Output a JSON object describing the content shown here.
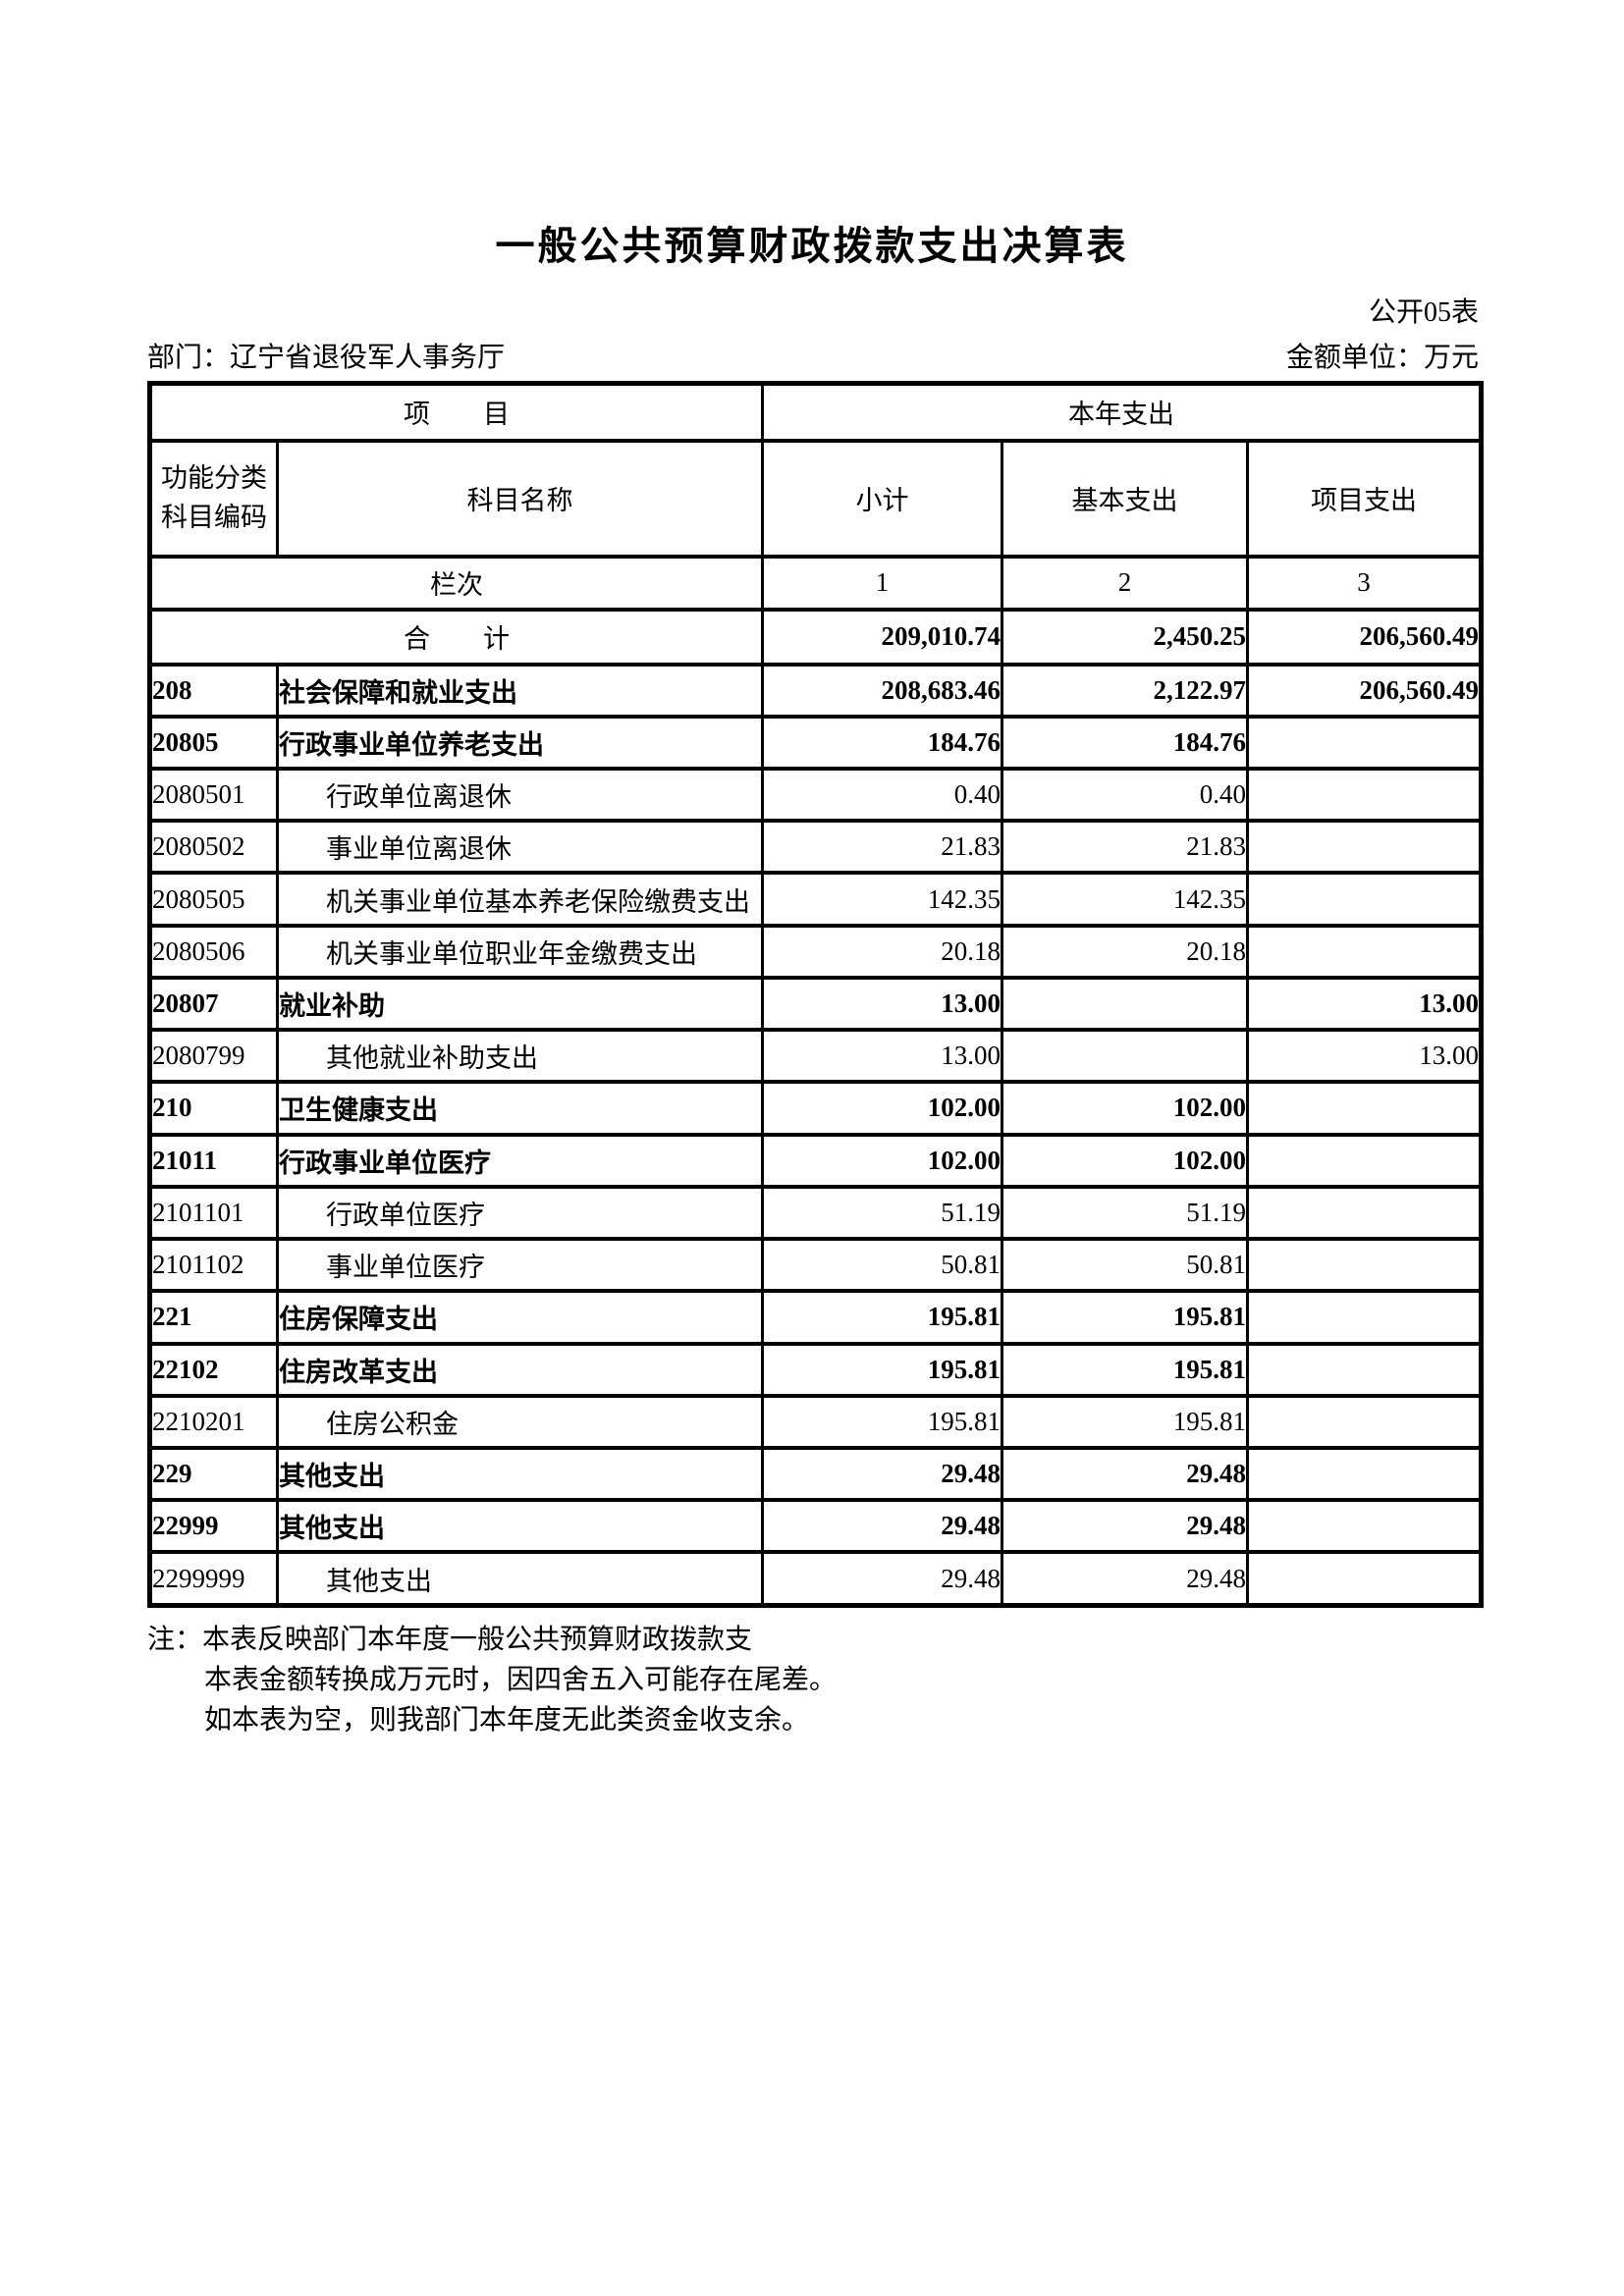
{
  "page": {
    "title": "一般公共预算财政拨款支出决算表",
    "table_code": "公开05表",
    "department": "部门：辽宁省退役军人事务厅",
    "unit": "金额单位：万元"
  },
  "table": {
    "header": {
      "item_group": "项　　目",
      "expense_group": "本年支出",
      "code_line1": "功能分类",
      "code_line2": "科目编码",
      "subject_name": "科目名称",
      "col_subtotal": "小计",
      "col_basic": "基本支出",
      "col_project": "项目支出",
      "rank_label": "栏次",
      "rank_1": "1",
      "rank_2": "2",
      "rank_3": "3"
    },
    "total_row": {
      "label": "合　　计",
      "subtotal": "209,010.74",
      "basic": "2,450.25",
      "project": "206,560.49"
    },
    "rows": [
      {
        "code": "208",
        "name": "社会保障和就业支出",
        "subtotal": "208,683.46",
        "basic": "2,122.97",
        "project": "206,560.49",
        "style": "section"
      },
      {
        "code": "20805",
        "name": "行政事业单位养老支出",
        "subtotal": "184.76",
        "basic": "184.76",
        "project": "",
        "style": "section"
      },
      {
        "code": "2080501",
        "name": "行政单位离退休",
        "subtotal": "0.40",
        "basic": "0.40",
        "project": "",
        "style": "detail"
      },
      {
        "code": "2080502",
        "name": "事业单位离退休",
        "subtotal": "21.83",
        "basic": "21.83",
        "project": "",
        "style": "detail"
      },
      {
        "code": "2080505",
        "name": "机关事业单位基本养老保险缴费支出",
        "subtotal": "142.35",
        "basic": "142.35",
        "project": "",
        "style": "detail"
      },
      {
        "code": "2080506",
        "name": "机关事业单位职业年金缴费支出",
        "subtotal": "20.18",
        "basic": "20.18",
        "project": "",
        "style": "detail"
      },
      {
        "code": "20807",
        "name": "就业补助",
        "subtotal": "13.00",
        "basic": "",
        "project": "13.00",
        "style": "section"
      },
      {
        "code": "2080799",
        "name": "其他就业补助支出",
        "subtotal": "13.00",
        "basic": "",
        "project": "13.00",
        "style": "detail"
      },
      {
        "code": "210",
        "name": "卫生健康支出",
        "subtotal": "102.00",
        "basic": "102.00",
        "project": "",
        "style": "section"
      },
      {
        "code": "21011",
        "name": "行政事业单位医疗",
        "subtotal": "102.00",
        "basic": "102.00",
        "project": "",
        "style": "section"
      },
      {
        "code": "2101101",
        "name": "行政单位医疗",
        "subtotal": "51.19",
        "basic": "51.19",
        "project": "",
        "style": "detail"
      },
      {
        "code": "2101102",
        "name": "事业单位医疗",
        "subtotal": "50.81",
        "basic": "50.81",
        "project": "",
        "style": "detail"
      },
      {
        "code": "221",
        "name": "住房保障支出",
        "subtotal": "195.81",
        "basic": "195.81",
        "project": "",
        "style": "section"
      },
      {
        "code": "22102",
        "name": "住房改革支出",
        "subtotal": "195.81",
        "basic": "195.81",
        "project": "",
        "style": "section"
      },
      {
        "code": "2210201",
        "name": "住房公积金",
        "subtotal": "195.81",
        "basic": "195.81",
        "project": "",
        "style": "detail"
      },
      {
        "code": "229",
        "name": "其他支出",
        "subtotal": "29.48",
        "basic": "29.48",
        "project": "",
        "style": "section"
      },
      {
        "code": "22999",
        "name": "其他支出",
        "subtotal": "29.48",
        "basic": "29.48",
        "project": "",
        "style": "section"
      },
      {
        "code": "2299999",
        "name": "其他支出",
        "subtotal": "29.48",
        "basic": "29.48",
        "project": "",
        "style": "detail"
      }
    ]
  },
  "notes": {
    "line1": "注：本表反映部门本年度一般公共预算财政拨款支",
    "line2": "本表金额转换成万元时，因四舍五入可能存在尾差。",
    "line3": "如本表为空，则我部门本年度无此类资金收支余。"
  }
}
